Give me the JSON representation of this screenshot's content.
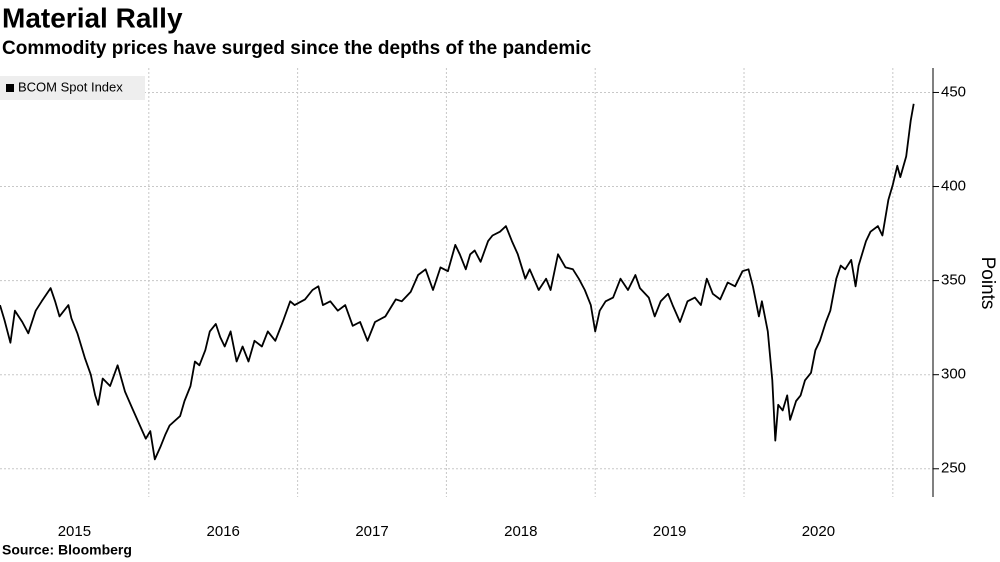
{
  "chart_data": {
    "type": "line",
    "title": "Material Rally",
    "subtitle": "Commodity prices have surged since the depths of the pandemic",
    "source": "Source: Bloomberg",
    "y_label": "Points",
    "legend_position": "top-left",
    "grid": true,
    "series": [
      {
        "name": "BCOM Spot Index",
        "color": "#000000",
        "x": [
          2015.0,
          2015.03,
          2015.07,
          2015.1,
          2015.15,
          2015.19,
          2015.24,
          2015.28,
          2015.34,
          2015.37,
          2015.4,
          2015.46,
          2015.48,
          2015.52,
          2015.57,
          2015.61,
          2015.64,
          2015.66,
          2015.69,
          2015.74,
          2015.79,
          2015.84,
          2015.89,
          2015.94,
          2015.98,
          2016.01,
          2016.04,
          2016.08,
          2016.11,
          2016.14,
          2016.21,
          2016.24,
          2016.28,
          2016.31,
          2016.34,
          2016.38,
          2016.41,
          2016.45,
          2016.48,
          2016.51,
          2016.55,
          2016.59,
          2016.63,
          2016.67,
          2016.71,
          2016.76,
          2016.8,
          2016.85,
          2016.9,
          2016.95,
          2016.98,
          2017.05,
          2017.1,
          2017.14,
          2017.17,
          2017.22,
          2017.27,
          2017.32,
          2017.37,
          2017.42,
          2017.47,
          2017.52,
          2017.59,
          2017.66,
          2017.7,
          2017.76,
          2017.81,
          2017.86,
          2017.91,
          2017.96,
          2018.01,
          2018.06,
          2018.09,
          2018.13,
          2018.16,
          2018.19,
          2018.23,
          2018.28,
          2018.31,
          2018.36,
          2018.4,
          2018.44,
          2018.48,
          2018.53,
          2018.56,
          2018.62,
          2018.67,
          2018.7,
          2018.75,
          2018.8,
          2018.85,
          2018.89,
          2018.93,
          2018.97,
          2019.0,
          2019.03,
          2019.07,
          2019.12,
          2019.17,
          2019.22,
          2019.27,
          2019.3,
          2019.36,
          2019.4,
          2019.44,
          2019.49,
          2019.52,
          2019.57,
          2019.62,
          2019.67,
          2019.71,
          2019.75,
          2019.79,
          2019.84,
          2019.89,
          2019.94,
          2019.99,
          2020.03,
          2020.06,
          2020.1,
          2020.12,
          2020.16,
          2020.19,
          2020.21,
          2020.23,
          2020.26,
          2020.29,
          2020.31,
          2020.35,
          2020.38,
          2020.41,
          2020.45,
          2020.48,
          2020.51,
          2020.55,
          2020.58,
          2020.62,
          2020.65,
          2020.68,
          2020.72,
          2020.75,
          2020.77,
          2020.82,
          2020.85,
          2020.9,
          2020.93,
          2020.97,
          2021.0,
          2021.03,
          2021.05,
          2021.09,
          2021.12,
          2021.14
        ],
        "values": [
          337,
          329,
          317,
          334,
          328,
          322,
          334,
          339,
          346,
          339,
          331,
          337,
          330,
          322,
          309,
          300,
          289,
          284,
          298,
          294,
          305,
          291,
          282,
          273,
          266,
          270,
          255,
          262,
          268,
          273,
          278,
          286,
          294,
          307,
          305,
          313,
          323,
          327,
          320,
          315,
          323,
          307,
          315,
          307,
          318,
          315,
          323,
          318,
          328,
          339,
          337,
          340,
          345,
          347,
          337,
          339,
          334,
          337,
          326,
          328,
          318,
          328,
          331,
          340,
          339,
          344,
          353,
          356,
          345,
          357,
          355,
          369,
          364,
          356,
          364,
          366,
          360,
          371,
          374,
          376,
          379,
          371,
          364,
          351,
          356,
          345,
          351,
          345,
          364,
          357,
          356,
          351,
          345,
          337,
          323,
          334,
          339,
          341,
          351,
          345,
          353,
          346,
          341,
          331,
          339,
          343,
          337,
          328,
          339,
          341,
          337,
          351,
          343,
          340,
          349,
          347,
          355,
          356,
          347,
          331,
          339,
          323,
          297,
          265,
          284,
          281,
          289,
          276,
          286,
          289,
          297,
          301,
          313,
          318,
          328,
          334,
          351,
          358,
          356,
          361,
          347,
          358,
          371,
          376,
          379,
          374,
          393,
          401,
          411,
          405,
          416,
          435,
          444
        ]
      }
    ],
    "xlim": [
      2015,
      2021.27
    ],
    "xgrid": [
      2016,
      2017,
      2018,
      2019,
      2020,
      2021
    ],
    "xticks": [
      {
        "value": 2015.5,
        "label": "2015"
      },
      {
        "value": 2016.5,
        "label": "2016"
      },
      {
        "value": 2017.5,
        "label": "2017"
      },
      {
        "value": 2018.5,
        "label": "2018"
      },
      {
        "value": 2019.5,
        "label": "2019"
      },
      {
        "value": 2020.5,
        "label": "2020"
      }
    ],
    "ylim": [
      235,
      463
    ],
    "yticks": [
      250,
      300,
      350,
      400,
      450
    ]
  }
}
